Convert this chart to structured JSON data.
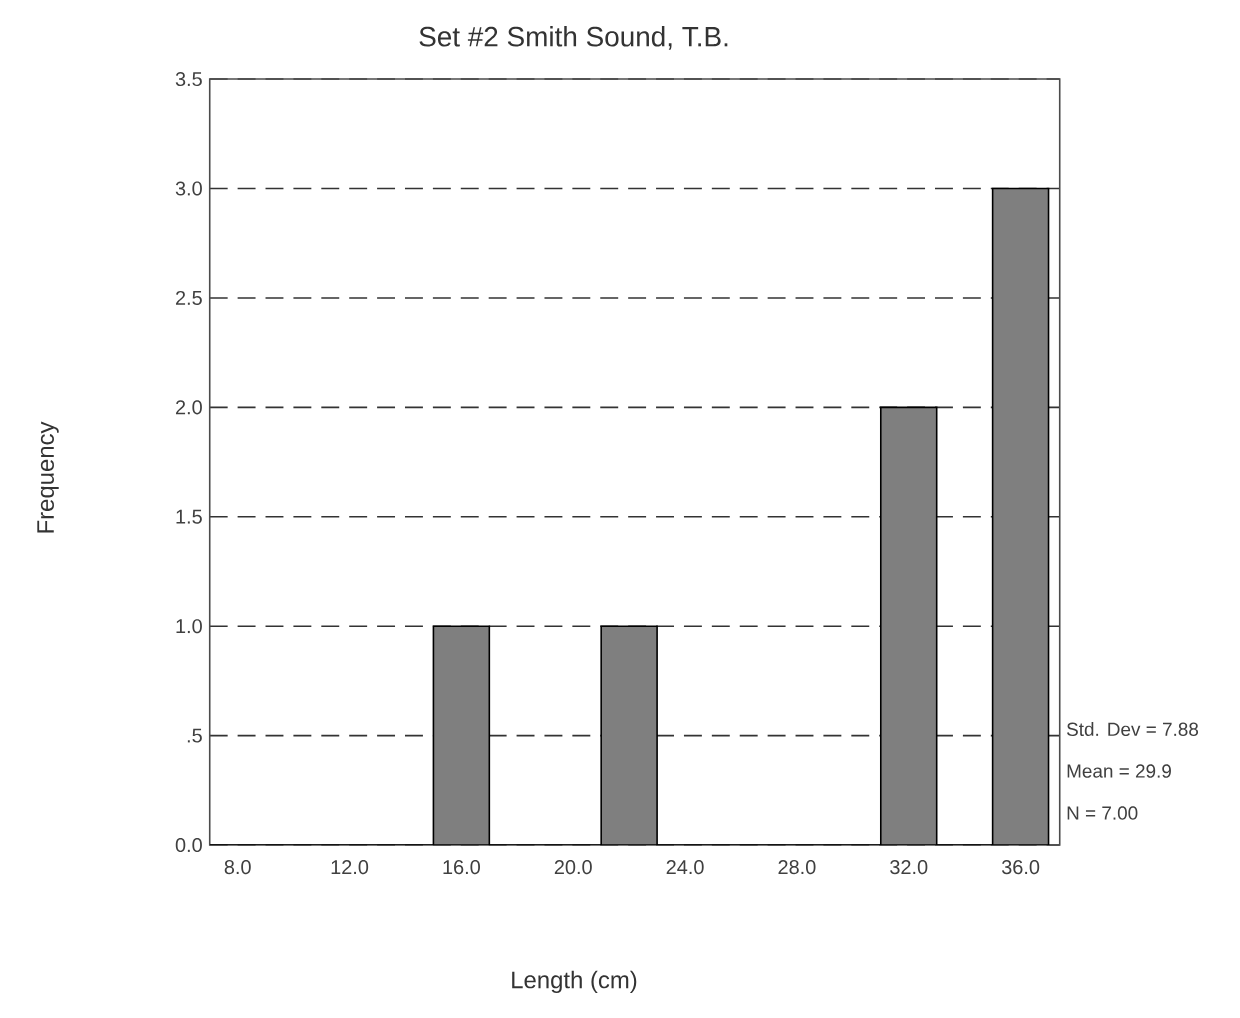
{
  "chart_data": {
    "type": "histogram",
    "title": "Set #2 Smith Sound, T.B.",
    "xlabel": "Length (cm)",
    "ylabel": "Frequency",
    "bins": [
      7,
      9,
      11,
      13,
      15,
      17,
      19,
      21,
      23,
      25,
      27,
      29,
      31,
      33,
      35,
      37
    ],
    "values": [
      0,
      0,
      0,
      0,
      1,
      0,
      0,
      1,
      0,
      0,
      0,
      0,
      2,
      0,
      3
    ],
    "color": "#7f7f7f",
    "xlim": [
      7,
      37.4
    ],
    "ylim": [
      0,
      3.5
    ],
    "xticks": [
      {
        "value": 8,
        "label": "8.0"
      },
      {
        "value": 12,
        "label": "12.0"
      },
      {
        "value": 16,
        "label": "16.0"
      },
      {
        "value": 20,
        "label": "20.0"
      },
      {
        "value": 24,
        "label": "24.0"
      },
      {
        "value": 28,
        "label": "28.0"
      },
      {
        "value": 32,
        "label": "32.0"
      },
      {
        "value": 36,
        "label": "36.0"
      }
    ],
    "yticks": [
      {
        "value": 0,
        "label": "0.0"
      },
      {
        "value": 0.5,
        "label": ".5"
      },
      {
        "value": 1,
        "label": "1.0"
      },
      {
        "value": 1.5,
        "label": "1.5"
      },
      {
        "value": 2,
        "label": "2.0"
      },
      {
        "value": 2.5,
        "label": "2.5"
      },
      {
        "value": 3,
        "label": "3.0"
      },
      {
        "value": 3.5,
        "label": "3.5"
      }
    ],
    "grid": "y",
    "annotations": [
      "Std. Dev = 7.88",
      "Mean = 29.9",
      "N = 7.00"
    ]
  }
}
